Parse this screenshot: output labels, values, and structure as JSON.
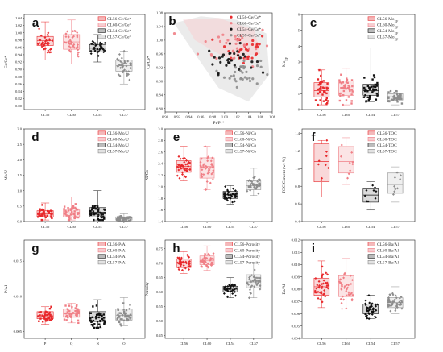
{
  "colors": {
    "red": "#e8292c",
    "pink": "#f07f86",
    "black": "#111111",
    "gray": "#8d8d8d",
    "box_red": "#f4b8ba",
    "box_pink": "#f7cdd0",
    "box_black": "#bcbcbc",
    "box_gray": "#e2e2e2"
  },
  "chart_data": [
    {
      "id": "a",
      "letter": "a",
      "type": "box",
      "ylabel": "Ce/Ce*",
      "categories": [
        "CL56",
        "CL60",
        "CL54",
        "CL57"
      ],
      "yticks": [
        "0.80",
        "0.82",
        "0.84",
        "0.86",
        "0.88",
        "0.90",
        "0.92",
        "0.94",
        "0.96",
        "0.98",
        "1.00",
        "1.02",
        "1.04"
      ],
      "ylim": [
        0.79,
        1.05
      ],
      "legend": [
        "CL56-Ce/Ce*",
        "CL60-Ce/Ce*",
        "CL54-Ce/Ce*",
        "CL57-Ce/Ce*"
      ],
      "series": [
        {
          "name": "CL56-Ce/Ce*",
          "q1": 0.965,
          "median": 0.978,
          "q3": 0.99,
          "min": 0.925,
          "max": 1.03,
          "center": 0.975,
          "spread": 0.022
        },
        {
          "name": "CL60-Ce/Ce*",
          "q1": 0.955,
          "median": 0.975,
          "q3": 0.995,
          "min": 0.915,
          "max": 1.035,
          "center": 0.975,
          "spread": 0.025
        },
        {
          "name": "CL54-Ce/Ce*",
          "q1": 0.948,
          "median": 0.958,
          "q3": 0.968,
          "min": 0.92,
          "max": 0.995,
          "center": 0.958,
          "spread": 0.015
        },
        {
          "name": "CL57-Ce/Ce*",
          "q1": 0.895,
          "median": 0.91,
          "q3": 0.925,
          "min": 0.86,
          "max": 0.95,
          "center": 0.91,
          "spread": 0.02
        }
      ]
    },
    {
      "id": "b",
      "letter": "b",
      "type": "scatter",
      "xlabel": "Pr/Pr*",
      "ylabel": "Ce/Ce*",
      "xticks": [
        "0.90",
        "0.92",
        "0.94",
        "0.96",
        "0.98",
        "1.00",
        "1.02",
        "1.04",
        "1.06",
        "1.08"
      ],
      "yticks": [
        "0.80",
        "0.84",
        "0.88",
        "0.92",
        "0.96",
        "1.00",
        "1.04",
        "1.08"
      ],
      "xlim": [
        0.9,
        1.08
      ],
      "ylim": [
        0.79,
        1.08
      ],
      "legend": [
        "CL56-Ce/Ce*",
        "CL60-Ce/Ce*",
        "CL54-Ce/Ce*",
        "CL57-Ce/Ce*"
      ],
      "series": [
        {
          "name": "CL56-Ce/Ce*",
          "cx": 1.03,
          "cy": 0.975,
          "sx": 0.022,
          "sy": 0.025
        },
        {
          "name": "CL60-Ce/Ce*",
          "cx": 1.02,
          "cy": 0.985,
          "sx": 0.03,
          "sy": 0.03
        },
        {
          "name": "CL54-Ce/Ce*",
          "cx": 1.01,
          "cy": 0.945,
          "sx": 0.02,
          "sy": 0.02
        },
        {
          "name": "CL57-Ce/Ce*",
          "cx": 1.03,
          "cy": 0.905,
          "sx": 0.015,
          "sy": 0.02
        }
      ]
    },
    {
      "id": "c",
      "letter": "c",
      "type": "box",
      "ylabel": "Mo_EF",
      "categories": [
        "CL56",
        "CL60",
        "CL54",
        "CL57"
      ],
      "yticks": [
        "0",
        "1",
        "2",
        "3",
        "4",
        "5",
        "6"
      ],
      "ylim": [
        0,
        6
      ],
      "legend": [
        "CL56-Mo_EF",
        "CL60-Mo_EF",
        "CL54-Mo_EF",
        "CL57-Mo_EF"
      ],
      "series": [
        {
          "name": "CL56-Mo_EF",
          "q1": 0.8,
          "median": 1.2,
          "q3": 1.7,
          "min": 0.3,
          "max": 2.5,
          "center": 1.2,
          "spread": 0.5
        },
        {
          "name": "CL60-Mo_EF",
          "q1": 0.9,
          "median": 1.3,
          "q3": 1.8,
          "min": 0.3,
          "max": 2.6,
          "center": 1.3,
          "spread": 0.55
        },
        {
          "name": "CL54-Mo_EF",
          "q1": 0.9,
          "median": 1.2,
          "q3": 1.6,
          "min": 0.5,
          "max": 3.9,
          "center": 1.2,
          "spread": 0.45
        },
        {
          "name": "CL57-Mo_EF",
          "q1": 0.6,
          "median": 0.8,
          "q3": 1.0,
          "min": 0.3,
          "max": 1.3,
          "center": 0.8,
          "spread": 0.25
        }
      ]
    },
    {
      "id": "d",
      "letter": "d",
      "type": "box",
      "ylabel": "Mo/U",
      "categories": [
        "CL56",
        "CL60",
        "CL54",
        "CL57"
      ],
      "yticks": [
        "0.0",
        "0.5",
        "1.0",
        "1.5",
        "2.0",
        "2.5",
        "3.0"
      ],
      "ylim": [
        0,
        3
      ],
      "legend": [
        "CL56-Mo/U",
        "CL60-Mo/U",
        "CL54-Mo/U",
        "CL57-Mo/U"
      ],
      "series": [
        {
          "name": "CL56-Mo/U",
          "q1": 0.15,
          "median": 0.25,
          "q3": 0.35,
          "min": 0.05,
          "max": 0.6,
          "center": 0.25,
          "spread": 0.12
        },
        {
          "name": "CL60-Mo/U",
          "q1": 0.15,
          "median": 0.28,
          "q3": 0.4,
          "min": 0.05,
          "max": 0.8,
          "center": 0.28,
          "spread": 0.14
        },
        {
          "name": "CL54-Mo/U",
          "q1": 0.15,
          "median": 0.3,
          "q3": 0.45,
          "min": 0.05,
          "max": 1.0,
          "center": 0.3,
          "spread": 0.18
        },
        {
          "name": "CL57-Mo/U",
          "q1": 0.05,
          "median": 0.1,
          "q3": 0.15,
          "min": 0.02,
          "max": 0.25,
          "center": 0.1,
          "spread": 0.05
        }
      ]
    },
    {
      "id": "e",
      "letter": "e",
      "type": "box",
      "ylabel": "Ni/Co",
      "categories": [
        "CL56",
        "CL60",
        "CL54",
        "CL57"
      ],
      "yticks": [
        "1.4",
        "1.6",
        "1.8",
        "2.0",
        "2.2",
        "2.4",
        "2.6",
        "2.8",
        "3.0"
      ],
      "ylim": [
        1.4,
        3.0
      ],
      "legend": [
        "CL56-Ni/Co",
        "CL60-Ni/Co",
        "CL54-Ni/Co",
        "CL57-Ni/Co"
      ],
      "series": [
        {
          "name": "CL56-Ni/Co",
          "q1": 2.25,
          "median": 2.35,
          "q3": 2.45,
          "min": 2.1,
          "max": 2.7,
          "center": 2.35,
          "spread": 0.12
        },
        {
          "name": "CL60-Ni/Co",
          "q1": 2.15,
          "median": 2.35,
          "q3": 2.5,
          "min": 1.95,
          "max": 2.7,
          "center": 2.33,
          "spread": 0.18
        },
        {
          "name": "CL54-Ni/Co",
          "q1": 1.8,
          "median": 1.86,
          "q3": 1.92,
          "min": 1.7,
          "max": 2.02,
          "center": 1.86,
          "spread": 0.07
        },
        {
          "name": "CL57-Ni/Co",
          "q1": 1.95,
          "median": 2.02,
          "q3": 2.1,
          "min": 1.85,
          "max": 2.32,
          "center": 2.02,
          "spread": 0.09
        }
      ]
    },
    {
      "id": "f",
      "letter": "f",
      "type": "box",
      "ylabel": "TOC Content (wt %)",
      "categories": [
        "CL56",
        "CL60",
        "CL54",
        "CL57"
      ],
      "yticks": [
        "0.4",
        "0.6",
        "0.8",
        "1.0",
        "1.2",
        "1.4"
      ],
      "ylim": [
        0.4,
        1.45
      ],
      "legend": [
        "CL56-TOC",
        "CL60-TOC",
        "CL54-TOC",
        "CL57-TOC"
      ],
      "series": [
        {
          "name": "CL56-TOC",
          "q1": 0.85,
          "median": 1.08,
          "q3": 1.28,
          "min": 0.68,
          "max": 1.32,
          "center": 1.05,
          "spread": 0.2
        },
        {
          "name": "CL60-TOC",
          "q1": 0.95,
          "median": 1.08,
          "q3": 1.25,
          "min": 0.82,
          "max": 1.35,
          "center": 1.08,
          "spread": 0.15
        },
        {
          "name": "CL54-TOC",
          "q1": 0.62,
          "median": 0.7,
          "q3": 0.77,
          "min": 0.53,
          "max": 0.85,
          "center": 0.7,
          "spread": 0.08
        },
        {
          "name": "CL57-TOC",
          "q1": 0.72,
          "median": 0.82,
          "q3": 0.95,
          "min": 0.62,
          "max": 1.02,
          "center": 0.82,
          "spread": 0.1
        }
      ]
    },
    {
      "id": "g",
      "letter": "g",
      "type": "box",
      "ylabel": "P/Al",
      "categories": [
        "P",
        "Q",
        "N",
        "O"
      ],
      "yticks": [
        "0.005",
        "0.010",
        "0.015"
      ],
      "ylim": [
        0.004,
        0.018
      ],
      "legend": [
        "CL56-P/Al",
        "CL60-P/Al",
        "CL54-P/Al",
        "CL57-P/Al"
      ],
      "series": [
        {
          "name": "CL56-P/Al",
          "q1": 0.0068,
          "median": 0.0072,
          "q3": 0.0078,
          "min": 0.006,
          "max": 0.0085,
          "center": 0.0072,
          "spread": 0.0006
        },
        {
          "name": "CL60-P/Al",
          "q1": 0.007,
          "median": 0.0075,
          "q3": 0.0082,
          "min": 0.0062,
          "max": 0.009,
          "center": 0.0076,
          "spread": 0.0007
        },
        {
          "name": "CL54-P/Al",
          "q1": 0.0064,
          "median": 0.007,
          "q3": 0.0078,
          "min": 0.0055,
          "max": 0.0095,
          "center": 0.007,
          "spread": 0.0009
        },
        {
          "name": "CL57-P/Al",
          "q1": 0.0066,
          "median": 0.0073,
          "q3": 0.0082,
          "min": 0.0058,
          "max": 0.0098,
          "center": 0.0073,
          "spread": 0.0009
        }
      ]
    },
    {
      "id": "h",
      "letter": "h",
      "type": "box",
      "ylabel": "Porosity",
      "categories": [
        "CL56",
        "CL60",
        "CL54",
        "CL57"
      ],
      "yticks": [
        "0.45",
        "0.50",
        "0.55",
        "0.60",
        "0.65",
        "0.70",
        "0.75"
      ],
      "ylim": [
        0.44,
        0.78
      ],
      "legend": [
        "CL56-Porosity",
        "CL60-Porosity",
        "CL54-Porosity",
        "CL57-Porosity"
      ],
      "series": [
        {
          "name": "CL56-Porosity",
          "q1": 0.685,
          "median": 0.7,
          "q3": 0.715,
          "min": 0.665,
          "max": 0.74,
          "center": 0.7,
          "spread": 0.015
        },
        {
          "name": "CL60-Porosity",
          "q1": 0.695,
          "median": 0.71,
          "q3": 0.725,
          "min": 0.675,
          "max": 0.76,
          "center": 0.71,
          "spread": 0.017
        },
        {
          "name": "CL54-Porosity",
          "q1": 0.6,
          "median": 0.61,
          "q3": 0.62,
          "min": 0.58,
          "max": 0.65,
          "center": 0.61,
          "spread": 0.013
        },
        {
          "name": "CL57-Porosity",
          "q1": 0.615,
          "median": 0.635,
          "q3": 0.66,
          "min": 0.58,
          "max": 0.7,
          "center": 0.635,
          "spread": 0.022
        }
      ]
    },
    {
      "id": "i",
      "letter": "i",
      "type": "box",
      "ylabel": "Ba/Al",
      "categories": [
        "CL56",
        "CL60",
        "CL54",
        "CL57"
      ],
      "yticks": [
        "0.004",
        "0.005",
        "0.006",
        "0.007",
        "0.008",
        "0.009",
        "0.010",
        "0.011",
        "0.012"
      ],
      "ylim": [
        0.004,
        0.012
      ],
      "legend": [
        "CL56-Ba/Al",
        "CL60-Ba/Al",
        "CL54-Ba/Al",
        "CL57-Ba/Al"
      ],
      "series": [
        {
          "name": "CL56-Ba/Al",
          "q1": 0.0075,
          "median": 0.0082,
          "q3": 0.0089,
          "min": 0.0065,
          "max": 0.0103,
          "center": 0.0082,
          "spread": 0.0009
        },
        {
          "name": "CL60-Ba/Al",
          "q1": 0.0074,
          "median": 0.0081,
          "q3": 0.0091,
          "min": 0.0064,
          "max": 0.0105,
          "center": 0.0082,
          "spread": 0.001
        },
        {
          "name": "CL54-Ba/Al",
          "q1": 0.006,
          "median": 0.0064,
          "q3": 0.0068,
          "min": 0.0056,
          "max": 0.0075,
          "center": 0.0064,
          "spread": 0.0005
        },
        {
          "name": "CL57-Ba/Al",
          "q1": 0.0065,
          "median": 0.0069,
          "q3": 0.0073,
          "min": 0.006,
          "max": 0.0082,
          "center": 0.0069,
          "spread": 0.0005
        }
      ]
    }
  ]
}
